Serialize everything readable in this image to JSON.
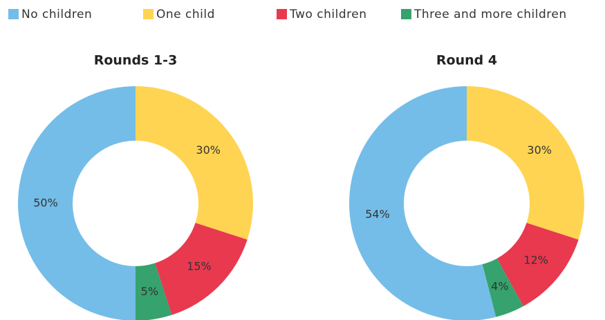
{
  "chart_data": [
    {
      "type": "pie",
      "title": "Rounds 1-3",
      "categories": [
        "One child",
        "Two children",
        "Three and more children",
        "No children"
      ],
      "values": [
        30,
        15,
        5,
        50
      ],
      "value_labels": [
        "30%",
        "15%",
        "5%",
        "50%"
      ],
      "colors": [
        "#ffd452",
        "#e8394f",
        "#36a26e",
        "#74bde8"
      ]
    },
    {
      "type": "pie",
      "title": "Round 4",
      "categories": [
        "One child",
        "Two children",
        "Three and more children",
        "No children"
      ],
      "values": [
        30,
        12,
        4,
        54
      ],
      "value_labels": [
        "30%",
        "12%",
        "4%",
        "54%"
      ],
      "colors": [
        "#ffd452",
        "#e8394f",
        "#36a26e",
        "#74bde8"
      ]
    }
  ]
}
